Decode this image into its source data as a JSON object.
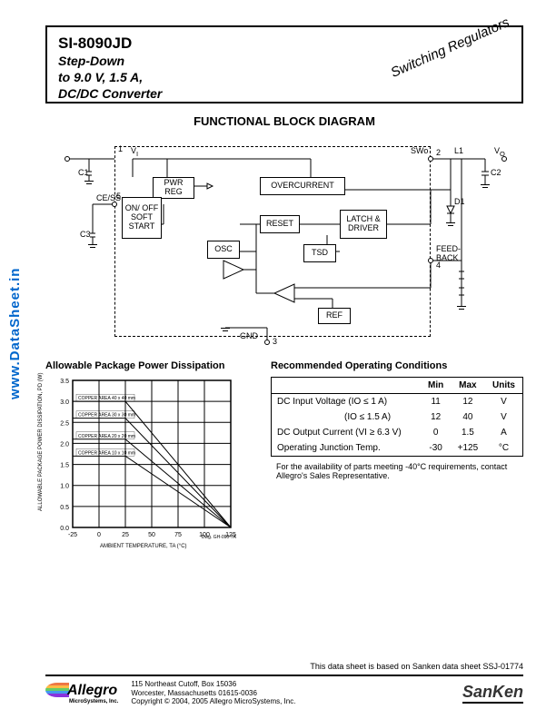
{
  "header": {
    "part_number": "SI-8090JD",
    "line1": "Step-Down",
    "line2": "to 9.0 V, 1.5 A,",
    "line3": "DC/DC Converter",
    "corner": "Switching Regulators"
  },
  "diagram": {
    "title": "FUNCTIONAL BLOCK DIAGRAM",
    "pins": {
      "vi": "V",
      "vi_sub": "I",
      "ce_ss": "CE/SS",
      "gnd": "GND",
      "swo": "SWo",
      "feedback": "FEED-BACK",
      "vo": "V",
      "vo_sub": "O"
    },
    "pin_nums": {
      "p1": "1",
      "p2": "2",
      "p3": "3",
      "p4": "4",
      "p5": "5"
    },
    "blocks": {
      "pwr_reg": "PWR REG",
      "overcurrent": "OVERCURRENT",
      "on_off": "ON/ OFF SOFT START",
      "reset": "RESET",
      "latch": "LATCH & DRIVER",
      "osc": "OSC",
      "tsd": "TSD",
      "ref": "REF"
    },
    "components": {
      "c1": "C1",
      "c2": "C2",
      "c3": "C3",
      "l1": "L1",
      "d1": "D1"
    }
  },
  "chart": {
    "title": "Allowable Package Power Dissipation",
    "type": "line",
    "xlabel": "AMBIENT TEMPERATURE, TA (°C)",
    "ylabel": "ALLOWABLE PACKAGE POWER DISSIPATION, PD (W)",
    "xlim": [
      -25,
      125
    ],
    "xtick_step": 25,
    "ylim": [
      0,
      3.5
    ],
    "ytick_step": 0.5,
    "grid_color": "#000000",
    "background_color": "#ffffff",
    "line_color": "#000000",
    "line_width": 1,
    "series": [
      {
        "label": "COPPER AREA 40 x 40 mm",
        "points": [
          [
            -25,
            3.0
          ],
          [
            25,
            3.0
          ],
          [
            125,
            0
          ]
        ]
      },
      {
        "label": "COPPER AREA 30 x 30 mm",
        "points": [
          [
            -25,
            2.6
          ],
          [
            25,
            2.6
          ],
          [
            125,
            0
          ]
        ]
      },
      {
        "label": "COPPER AREA 20 x 20 mm",
        "points": [
          [
            -25,
            2.1
          ],
          [
            25,
            2.1
          ],
          [
            125,
            0
          ]
        ]
      },
      {
        "label": "COPPER AREA 10 x 10 mm",
        "points": [
          [
            -25,
            1.7
          ],
          [
            25,
            1.7
          ],
          [
            125,
            0
          ]
        ]
      }
    ],
    "dwg_note": "Dwg. GH-090-7A",
    "label_fontsize": 6,
    "anno_fontsize": 5
  },
  "table": {
    "title": "Recommended Operating Conditions",
    "columns": [
      "",
      "Min",
      "Max",
      "Units"
    ],
    "rows": [
      [
        "DC Input Voltage (IO ≤ 1 A)",
        "11",
        "12",
        "V"
      ],
      [
        "(IO ≤ 1.5 A)",
        "12",
        "40",
        "V"
      ],
      [
        "DC Output Current (VI ≥ 6.3 V)",
        "0",
        "1.5",
        "A"
      ],
      [
        "Operating Junction Temp.",
        "-30",
        "+125",
        "°C"
      ]
    ],
    "note": "For the availability of parts meeting -40°C requirements, contact Allegro's Sales Representative."
  },
  "side_url": "www.DataSheet.in",
  "footer": {
    "source_note": "This data sheet is based on Sanken data sheet SSJ-01774",
    "allegro_name": "Allegro",
    "allegro_sub": "MicroSystems, Inc.",
    "address_l1": "115 Northeast Cutoff, Box 15036",
    "address_l2": "Worcester, Massachusetts 01615-0036",
    "address_l3": "Copyright © 2004, 2005 Allegro MicroSystems, Inc.",
    "sanken": "SanKen"
  }
}
